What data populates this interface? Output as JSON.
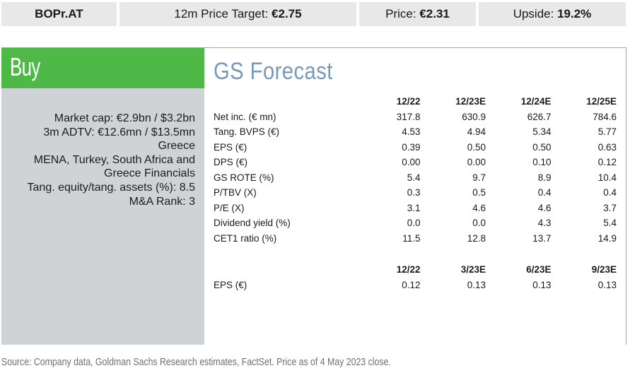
{
  "topbar": {
    "ticker": "BOPr.AT",
    "target_label": "12m Price Target: ",
    "target_value": "€2.75",
    "price_label": "Price: ",
    "price_value": "€2.31",
    "upside_label": "Upside: ",
    "upside_value": "19.2%"
  },
  "rating": {
    "label": "Buy",
    "color": "#4fb947"
  },
  "facts": [
    "Market cap: €2.9bn / $3.2bn",
    "3m ADTV: €12.6mn / $13.5mn",
    "Greece",
    "MENA, Turkey, South Africa and",
    "Greece Financials",
    "Tang. equity/tang. assets (%): 8.5",
    "M&A Rank: 3"
  ],
  "forecast": {
    "title": "GS Forecast",
    "annual": {
      "columns": [
        "12/22",
        "12/23E",
        "12/24E",
        "12/25E"
      ],
      "rows": [
        {
          "label": "Net inc. (€ mn)",
          "values": [
            "317.8",
            "630.9",
            "626.7",
            "784.6"
          ]
        },
        {
          "label": "Tang. BVPS (€)",
          "values": [
            "4.53",
            "4.94",
            "5.34",
            "5.77"
          ]
        },
        {
          "label": "EPS (€)",
          "values": [
            "0.39",
            "0.50",
            "0.50",
            "0.63"
          ]
        },
        {
          "label": "DPS (€)",
          "values": [
            "0.00",
            "0.00",
            "0.10",
            "0.12"
          ]
        },
        {
          "label": "GS ROTE (%)",
          "values": [
            "5.4",
            "9.7",
            "8.9",
            "10.4"
          ]
        },
        {
          "label": "P/TBV (X)",
          "values": [
            "0.3",
            "0.5",
            "0.4",
            "0.4"
          ]
        },
        {
          "label": "P/E (X)",
          "values": [
            "3.1",
            "4.6",
            "4.6",
            "3.7"
          ]
        },
        {
          "label": "Dividend yield (%)",
          "values": [
            "0.0",
            "0.0",
            "4.3",
            "5.4"
          ]
        },
        {
          "label": "CET1 ratio (%)",
          "values": [
            "11.5",
            "12.8",
            "13.7",
            "14.9"
          ]
        }
      ]
    },
    "quarterly": {
      "columns": [
        "12/22",
        "3/23E",
        "6/23E",
        "9/23E"
      ],
      "rows": [
        {
          "label": "EPS (€)",
          "values": [
            "0.12",
            "0.13",
            "0.13",
            "0.13"
          ]
        }
      ]
    }
  },
  "source": "Source: Company data, Goldman Sachs Research estimates, FactSet. Price as of 4 May 2023 close."
}
